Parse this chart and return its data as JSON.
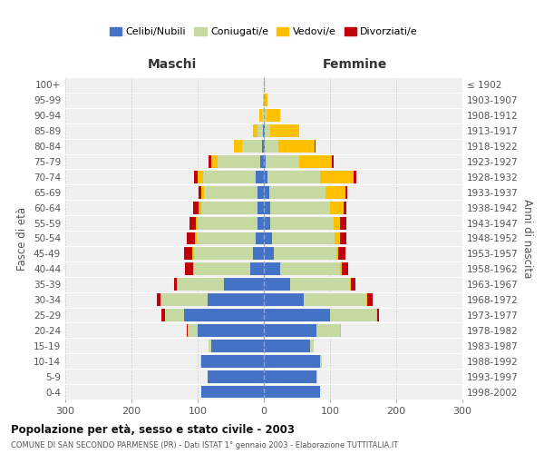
{
  "age_groups": [
    "0-4",
    "5-9",
    "10-14",
    "15-19",
    "20-24",
    "25-29",
    "30-34",
    "35-39",
    "40-44",
    "45-49",
    "50-54",
    "55-59",
    "60-64",
    "65-69",
    "70-74",
    "75-79",
    "80-84",
    "85-89",
    "90-94",
    "95-99",
    "100+"
  ],
  "birth_years": [
    "1998-2002",
    "1993-1997",
    "1988-1992",
    "1983-1987",
    "1978-1982",
    "1973-1977",
    "1968-1972",
    "1963-1967",
    "1958-1962",
    "1953-1957",
    "1948-1952",
    "1943-1947",
    "1938-1942",
    "1933-1937",
    "1928-1932",
    "1923-1927",
    "1918-1922",
    "1913-1917",
    "1908-1912",
    "1903-1907",
    "≤ 1902"
  ],
  "male": {
    "celibi": [
      95,
      85,
      95,
      80,
      100,
      120,
      85,
      60,
      20,
      16,
      12,
      10,
      10,
      10,
      12,
      5,
      3,
      1,
      0,
      0,
      0
    ],
    "coniugati": [
      0,
      0,
      1,
      3,
      15,
      30,
      70,
      70,
      85,
      90,
      90,
      90,
      85,
      80,
      80,
      65,
      30,
      8,
      3,
      1,
      0
    ],
    "vedovi": [
      0,
      0,
      0,
      0,
      0,
      0,
      1,
      1,
      2,
      2,
      2,
      3,
      4,
      5,
      8,
      10,
      12,
      8,
      4,
      1,
      0
    ],
    "divorziati": [
      0,
      0,
      0,
      0,
      1,
      5,
      5,
      5,
      12,
      12,
      12,
      10,
      8,
      3,
      5,
      3,
      0,
      0,
      0,
      0,
      0
    ]
  },
  "female": {
    "nubili": [
      85,
      80,
      85,
      70,
      80,
      100,
      60,
      40,
      25,
      15,
      12,
      10,
      10,
      8,
      5,
      3,
      2,
      1,
      0,
      0,
      0
    ],
    "coniugate": [
      0,
      1,
      3,
      5,
      35,
      70,
      95,
      90,
      90,
      95,
      95,
      95,
      90,
      85,
      80,
      50,
      20,
      8,
      4,
      1,
      0
    ],
    "vedove": [
      0,
      0,
      0,
      0,
      1,
      1,
      1,
      1,
      3,
      3,
      8,
      10,
      20,
      30,
      50,
      50,
      55,
      45,
      20,
      5,
      1
    ],
    "divorziate": [
      0,
      0,
      0,
      0,
      1,
      3,
      8,
      8,
      10,
      10,
      10,
      10,
      5,
      3,
      5,
      3,
      1,
      0,
      0,
      0,
      0
    ]
  },
  "colors": {
    "celibi_nubili": "#4472c4",
    "coniugati": "#c5d9a0",
    "vedovi": "#ffc000",
    "divorziati": "#c0000b"
  },
  "title": "Popolazione per età, sesso e stato civile - 2003",
  "subtitle": "COMUNE DI SAN SECONDO PARMENSE (PR) - Dati ISTAT 1° gennaio 2003 - Elaborazione TUTTITALIA.IT",
  "xlabel_left": "Maschi",
  "xlabel_right": "Femmine",
  "ylabel_left": "Fasce di età",
  "ylabel_right": "Anni di nascita",
  "xlim": 300,
  "legend_labels": [
    "Celibi/Nubili",
    "Coniugati/e",
    "Vedovi/e",
    "Divorziati/e"
  ],
  "background_color": "#ffffff",
  "bar_bg_color": "#f0f0f0"
}
